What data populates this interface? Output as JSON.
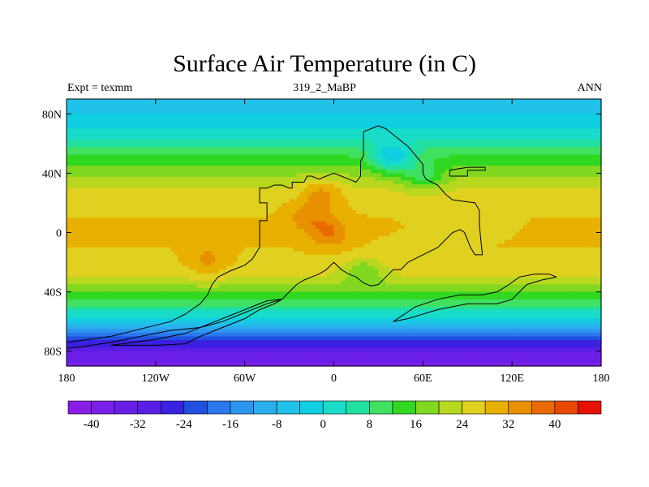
{
  "title": "Surface Air Temperature (in C)",
  "left_label": "Expt = texmm",
  "center_label": "319_2_MaBP",
  "right_label": "ANN",
  "chart_data": {
    "type": "heatmap",
    "title": "Surface Air Temperature (in C)",
    "units": "C",
    "xlim": [
      -180,
      180
    ],
    "ylim": [
      -90,
      90
    ],
    "x_ticks": [
      {
        "value": -180,
        "label": "180"
      },
      {
        "value": -120,
        "label": "120W"
      },
      {
        "value": -60,
        "label": "60W"
      },
      {
        "value": 0,
        "label": "0"
      },
      {
        "value": 60,
        "label": "60E"
      },
      {
        "value": 120,
        "label": "120E"
      },
      {
        "value": 180,
        "label": "180"
      }
    ],
    "y_ticks": [
      {
        "value": 80,
        "label": "80N"
      },
      {
        "value": 40,
        "label": "40N"
      },
      {
        "value": 0,
        "label": "0"
      },
      {
        "value": -40,
        "label": "40S"
      },
      {
        "value": -80,
        "label": "80S"
      }
    ],
    "colorbar": {
      "boundaries": [
        -44,
        -40,
        -36,
        -32,
        -28,
        -24,
        -20,
        -16,
        -12,
        -8,
        -4,
        0,
        4,
        8,
        12,
        16,
        20,
        24,
        28,
        32,
        36,
        40,
        44
      ],
      "colors": [
        "#8a1ce6",
        "#7a1fe8",
        "#6a1fe8",
        "#5a1ee6",
        "#3a20e0",
        "#2050e0",
        "#2a78ec",
        "#2c96ee",
        "#2aaeee",
        "#20c2ea",
        "#10cfe0",
        "#18dcc8",
        "#20e0a0",
        "#40e060",
        "#30d820",
        "#80d820",
        "#b8d820",
        "#e0d020",
        "#e8b000",
        "#e89000",
        "#e86a00",
        "#e84800",
        "#e81000"
      ],
      "tick_labels": [
        {
          "value": -40,
          "label": "-40"
        },
        {
          "value": -32,
          "label": "-32"
        },
        {
          "value": -24,
          "label": "-24"
        },
        {
          "value": -16,
          "label": "-16"
        },
        {
          "value": -8,
          "label": "-8"
        },
        {
          "value": 0,
          "label": "0"
        },
        {
          "value": 8,
          "label": "8"
        },
        {
          "value": 16,
          "label": "16"
        },
        {
          "value": 24,
          "label": "24"
        },
        {
          "value": 32,
          "label": "32"
        },
        {
          "value": 40,
          "label": "40"
        }
      ]
    },
    "zonal_mean_temperature": [
      {
        "lat": 90,
        "value": -6
      },
      {
        "lat": 80,
        "value": -4
      },
      {
        "lat": 70,
        "value": 0
      },
      {
        "lat": 60,
        "value": 6
      },
      {
        "lat": 50,
        "value": 13
      },
      {
        "lat": 40,
        "value": 19
      },
      {
        "lat": 30,
        "value": 24
      },
      {
        "lat": 20,
        "value": 27
      },
      {
        "lat": 10,
        "value": 28
      },
      {
        "lat": 0,
        "value": 28
      },
      {
        "lat": -10,
        "value": 28
      },
      {
        "lat": -20,
        "value": 27
      },
      {
        "lat": -30,
        "value": 24
      },
      {
        "lat": -40,
        "value": 17
      },
      {
        "lat": -50,
        "value": 8
      },
      {
        "lat": -60,
        "value": -4
      },
      {
        "lat": -70,
        "value": -20
      },
      {
        "lat": -80,
        "value": -32
      },
      {
        "lat": -90,
        "value": -38
      }
    ],
    "land_hotspots": [
      {
        "lon": -3,
        "lat": 0,
        "value": 36
      },
      {
        "lon": -17,
        "lat": 10,
        "value": 34
      },
      {
        "lon": -8,
        "lat": 25,
        "value": 33
      },
      {
        "lon": -85,
        "lat": -18,
        "value": 33
      }
    ],
    "land_colder_areas": [
      {
        "lon": 40,
        "lat": 52,
        "value": -4
      },
      {
        "lon": 60,
        "lat": 40,
        "value": 10
      },
      {
        "lon": 20,
        "lat": -28,
        "value": 16
      }
    ],
    "land_outline_lonlat": [
      [
        -50,
        -10
      ],
      [
        -50,
        -2
      ],
      [
        -50,
        8
      ],
      [
        -45,
        8
      ],
      [
        -45,
        20
      ],
      [
        -50,
        20
      ],
      [
        -50,
        30
      ],
      [
        -45,
        30
      ],
      [
        -40,
        32
      ],
      [
        -35,
        32
      ],
      [
        -30,
        30
      ],
      [
        -28,
        30
      ],
      [
        -28,
        34
      ],
      [
        -20,
        34
      ],
      [
        -18,
        38
      ],
      [
        -15,
        38
      ],
      [
        -10,
        36
      ],
      [
        -5,
        38
      ],
      [
        0,
        40
      ],
      [
        5,
        38
      ],
      [
        10,
        36
      ],
      [
        15,
        34
      ],
      [
        18,
        38
      ],
      [
        18,
        48
      ],
      [
        20,
        52
      ],
      [
        20,
        68
      ],
      [
        25,
        70
      ],
      [
        30,
        72
      ],
      [
        35,
        70
      ],
      [
        40,
        66
      ],
      [
        45,
        62
      ],
      [
        50,
        58
      ],
      [
        55,
        52
      ],
      [
        60,
        46
      ],
      [
        60,
        40
      ],
      [
        62,
        36
      ],
      [
        70,
        32
      ],
      [
        75,
        26
      ],
      [
        80,
        22
      ],
      [
        95,
        20
      ],
      [
        98,
        15
      ],
      [
        98,
        5
      ],
      [
        100,
        -15
      ],
      [
        95,
        -15
      ],
      [
        92,
        -10
      ],
      [
        90,
        -5
      ],
      [
        88,
        0
      ],
      [
        85,
        2
      ],
      [
        80,
        0
      ],
      [
        75,
        -5
      ],
      [
        70,
        -10
      ],
      [
        60,
        -15
      ],
      [
        50,
        -20
      ],
      [
        45,
        -25
      ],
      [
        40,
        -25
      ],
      [
        35,
        -30
      ],
      [
        30,
        -35
      ],
      [
        25,
        -36
      ],
      [
        20,
        -34
      ],
      [
        15,
        -30
      ],
      [
        10,
        -28
      ],
      [
        5,
        -25
      ],
      [
        0,
        -20
      ],
      [
        -5,
        -25
      ],
      [
        -10,
        -28
      ],
      [
        -15,
        -30
      ],
      [
        -20,
        -32
      ],
      [
        -25,
        -35
      ],
      [
        -30,
        -40
      ],
      [
        -35,
        -45
      ],
      [
        -45,
        -48
      ],
      [
        -55,
        -52
      ],
      [
        -65,
        -56
      ],
      [
        -75,
        -60
      ],
      [
        -90,
        -64
      ],
      [
        -110,
        -66
      ],
      [
        -130,
        -70
      ],
      [
        -150,
        -74
      ],
      [
        -170,
        -77
      ],
      [
        -180,
        -78
      ],
      [
        -180,
        -74
      ],
      [
        -165,
        -72
      ],
      [
        -150,
        -70
      ],
      [
        -130,
        -65
      ],
      [
        -110,
        -60
      ],
      [
        -100,
        -55
      ],
      [
        -90,
        -48
      ],
      [
        -85,
        -42
      ],
      [
        -82,
        -35
      ],
      [
        -78,
        -30
      ],
      [
        -70,
        -26
      ],
      [
        -60,
        -22
      ],
      [
        -55,
        -18
      ],
      [
        -50,
        -10
      ]
    ],
    "east_landmass_outline_lonlat": [
      [
        150,
        -30
      ],
      [
        140,
        -32
      ],
      [
        130,
        -35
      ],
      [
        125,
        -40
      ],
      [
        120,
        -45
      ],
      [
        110,
        -48
      ],
      [
        100,
        -48
      ],
      [
        90,
        -48
      ],
      [
        80,
        -50
      ],
      [
        70,
        -52
      ],
      [
        60,
        -55
      ],
      [
        50,
        -58
      ],
      [
        40,
        -60
      ],
      [
        55,
        -50
      ],
      [
        70,
        -45
      ],
      [
        85,
        -42
      ],
      [
        100,
        -42
      ],
      [
        110,
        -40
      ],
      [
        118,
        -35
      ],
      [
        125,
        -30
      ],
      [
        135,
        -28
      ],
      [
        145,
        -28
      ],
      [
        150,
        -30
      ]
    ],
    "ne_small_island_lonlat": [
      [
        78,
        38
      ],
      [
        90,
        38
      ],
      [
        90,
        42
      ],
      [
        102,
        42
      ],
      [
        102,
        44
      ],
      [
        90,
        44
      ],
      [
        78,
        42
      ],
      [
        78,
        38
      ]
    ],
    "sw_strip_outline_lonlat": [
      [
        -150,
        -76
      ],
      [
        -120,
        -76
      ],
      [
        -100,
        -75
      ],
      [
        -90,
        -70
      ],
      [
        -75,
        -64
      ],
      [
        -60,
        -58
      ],
      [
        -50,
        -52
      ],
      [
        -40,
        -48
      ],
      [
        -35,
        -45
      ],
      [
        -45,
        -46
      ],
      [
        -55,
        -50
      ],
      [
        -70,
        -56
      ],
      [
        -85,
        -62
      ],
      [
        -100,
        -68
      ],
      [
        -120,
        -72
      ],
      [
        -150,
        -76
      ]
    ]
  }
}
